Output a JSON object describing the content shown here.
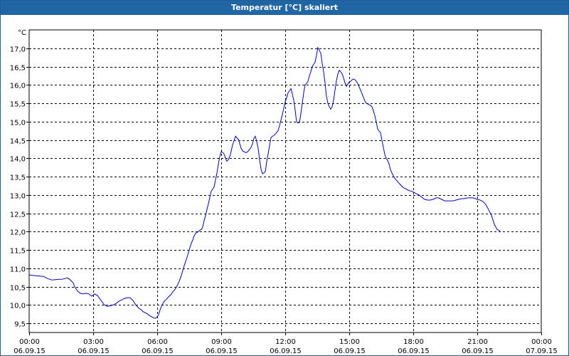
{
  "window": {
    "title": "Temperatur [°C] skaliert"
  },
  "colors": {
    "titlebar": "#2066a4",
    "series": "#0000cc",
    "grid": "#000000"
  },
  "chart_data": {
    "type": "line",
    "title": "Temperatur [°C] skaliert",
    "ylabel": "°C",
    "xlabel": "",
    "grid": true,
    "ylim": [
      9.25,
      17.5
    ],
    "xlim": [
      "06.09.15 00:00",
      "07.09.15 00:00"
    ],
    "y_ticks": [
      "9,5",
      "10,0",
      "10,5",
      "11,0",
      "11,5",
      "12,0",
      "12,5",
      "13,0",
      "13,5",
      "14,0",
      "14,5",
      "15,0",
      "15,5",
      "16,0",
      "16,5",
      "17,0"
    ],
    "x_ticks": [
      {
        "time": "00:00",
        "date": "06.09.15"
      },
      {
        "time": "03:00",
        "date": "06.09.15"
      },
      {
        "time": "06:00",
        "date": "06.09.15"
      },
      {
        "time": "09:00",
        "date": "06.09.15"
      },
      {
        "time": "12:00",
        "date": "06.09.15"
      },
      {
        "time": "15:00",
        "date": "06.09.15"
      },
      {
        "time": "18:00",
        "date": "06.09.15"
      },
      {
        "time": "21:00",
        "date": "06.09.15"
      },
      {
        "time": "00:00",
        "date": "07.09.15"
      }
    ],
    "x_hours": [
      0,
      0.3,
      0.67,
      0.87,
      1.07,
      1.4,
      1.53,
      1.67,
      1.8,
      1.93,
      2.07,
      2.13,
      2.27,
      2.4,
      2.53,
      2.67,
      2.8,
      2.93,
      3.07,
      3.2,
      3.4,
      3.53,
      3.67,
      3.8,
      3.93,
      4.07,
      4.2,
      4.27,
      4.47,
      4.6,
      4.73,
      4.87,
      5,
      5.13,
      5.27,
      5.33,
      5.53,
      5.67,
      5.8,
      5.87,
      5.93,
      6,
      6.07,
      6.13,
      6.2,
      6.27,
      6.33,
      6.4,
      6.47,
      6.53,
      6.6,
      6.67,
      6.73,
      6.8,
      6.87,
      7,
      7.13,
      7.27,
      7.4,
      7.47,
      7.53,
      7.6,
      7.67,
      7.73,
      7.8,
      7.87,
      7.93,
      8,
      8.07,
      8.13,
      8.2,
      8.27,
      8.33,
      8.4,
      8.47,
      8.53,
      8.6,
      8.67,
      8.73,
      8.8,
      8.87,
      8.93,
      9,
      9.07,
      9.13,
      9.2,
      9.27,
      9.33,
      9.4,
      9.47,
      9.53,
      9.6,
      9.67,
      9.73,
      9.8,
      9.87,
      9.93,
      10,
      10.07,
      10.13,
      10.2,
      10.27,
      10.33,
      10.4,
      10.47,
      10.53,
      10.6,
      10.67,
      10.73,
      10.8,
      10.87,
      10.93,
      11,
      11.07,
      11.13,
      11.2,
      11.27,
      11.33,
      11.4,
      11.47,
      11.53,
      11.6,
      11.67,
      11.73,
      11.8,
      11.87,
      11.93,
      12,
      12.07,
      12.13,
      12.2,
      12.27,
      12.33,
      12.4,
      12.47,
      12.53,
      12.6,
      12.67,
      12.73,
      12.8,
      12.87,
      12.93,
      13,
      13.07,
      13.13,
      13.2,
      13.27,
      13.33,
      13.4,
      13.47,
      13.53,
      13.6,
      13.67,
      13.73,
      13.8,
      13.87,
      13.93,
      14,
      14.07,
      14.13,
      14.2,
      14.27,
      14.33,
      14.4,
      14.47,
      14.53,
      14.6,
      14.67,
      14.73,
      14.8,
      14.87,
      14.93,
      15,
      15.07,
      15.13,
      15.2,
      15.27,
      15.33,
      15.4,
      15.47,
      15.53,
      15.6,
      15.67,
      15.73,
      15.8,
      15.87,
      15.93,
      16,
      16.07,
      16.13,
      16.2,
      16.27,
      16.33,
      16.4,
      16.47,
      16.53,
      16.6,
      16.67,
      16.73,
      16.8,
      16.87,
      16.93,
      17,
      17.13,
      17.27,
      17.4,
      17.53,
      17.67,
      17.8,
      17.93,
      18,
      18.13,
      18.27,
      18.4,
      18.53,
      18.67,
      18.8,
      18.93,
      19.07,
      19.2,
      19.33,
      19.47,
      19.6,
      19.73,
      19.87,
      20,
      20.13,
      20.27,
      20.4,
      20.53,
      20.67,
      20.8,
      20.93,
      21,
      21.13,
      21.27,
      21.4,
      21.53,
      21.67,
      21.8,
      21.93,
      22.07,
      22.2,
      22.33,
      22.47,
      22.6,
      22.73,
      22.87,
      23,
      23.13,
      23.27,
      23.4,
      23.53,
      23.67,
      23.73,
      23.8,
      23.87
    ],
    "series": [
      {
        "values": [
          10.82,
          10.8,
          10.78,
          10.72,
          10.68,
          10.7,
          10.7,
          10.72,
          10.74,
          10.68,
          10.6,
          10.5,
          10.38,
          10.32,
          10.3,
          10.32,
          10.3,
          10.24,
          10.3,
          10.26,
          10.1,
          10.0,
          9.96,
          9.98,
          10.0,
          10.04,
          10.1,
          10.12,
          10.18,
          10.2,
          10.2,
          10.12,
          10.0,
          9.92,
          9.86,
          9.82,
          9.76,
          9.7,
          9.66,
          9.64,
          9.64,
          9.68,
          9.74,
          9.86,
          9.96,
          10.04,
          10.1,
          10.14,
          10.18,
          10.22,
          10.26,
          10.3,
          10.36,
          10.4,
          10.46,
          10.6,
          10.8,
          11.08,
          11.3,
          11.44,
          11.56,
          11.68,
          11.78,
          11.88,
          11.96,
          11.98,
          12.0,
          12.04,
          12.06,
          12.12,
          12.3,
          12.44,
          12.6,
          12.76,
          12.94,
          13.1,
          13.16,
          13.22,
          13.4,
          13.6,
          13.84,
          14.04,
          14.18,
          14.16,
          14.12,
          14.0,
          13.92,
          13.96,
          14.04,
          14.2,
          14.36,
          14.48,
          14.6,
          14.56,
          14.52,
          14.4,
          14.28,
          14.2,
          14.18,
          14.16,
          14.16,
          14.2,
          14.24,
          14.3,
          14.4,
          14.54,
          14.6,
          14.44,
          14.28,
          13.96,
          13.7,
          13.58,
          13.6,
          13.64,
          13.9,
          14.12,
          14.36,
          14.56,
          14.6,
          14.62,
          14.66,
          14.7,
          14.76,
          14.88,
          15.04,
          15.2,
          15.36,
          15.54,
          15.66,
          15.78,
          15.84,
          15.9,
          15.76,
          15.58,
          15.3,
          15.0,
          14.96,
          14.98,
          15.2,
          15.5,
          15.8,
          16.0,
          16.04,
          16.1,
          16.24,
          16.36,
          16.5,
          16.56,
          16.62,
          16.82,
          17.02,
          16.94,
          16.86,
          16.6,
          16.36,
          16.04,
          15.7,
          15.5,
          15.4,
          15.34,
          15.4,
          15.6,
          15.84,
          16.12,
          16.3,
          16.4,
          16.36,
          16.3,
          16.2,
          16.06,
          15.96,
          16.02,
          16.08,
          16.1,
          16.14,
          16.16,
          16.14,
          16.1,
          16.04,
          15.94,
          15.86,
          15.76,
          15.66,
          15.56,
          15.5,
          15.48,
          15.46,
          15.44,
          15.4,
          15.3,
          15.16,
          14.98,
          14.8,
          14.74,
          14.7,
          14.5,
          14.3,
          14.1,
          14.0,
          13.94,
          13.84,
          13.7,
          13.6,
          13.46,
          13.36,
          13.28,
          13.2,
          13.16,
          13.12,
          13.1,
          13.08,
          13.04,
          13.0,
          12.94,
          12.88,
          12.86,
          12.86,
          12.88,
          12.92,
          12.92,
          12.88,
          12.84,
          12.84,
          12.84,
          12.84,
          12.86,
          12.88,
          12.9,
          12.9,
          12.92,
          12.92,
          12.92,
          12.9,
          12.88,
          12.86,
          12.82,
          12.74,
          12.6,
          12.44,
          12.2,
          12.06,
          12.02
        ]
      }
    ]
  }
}
